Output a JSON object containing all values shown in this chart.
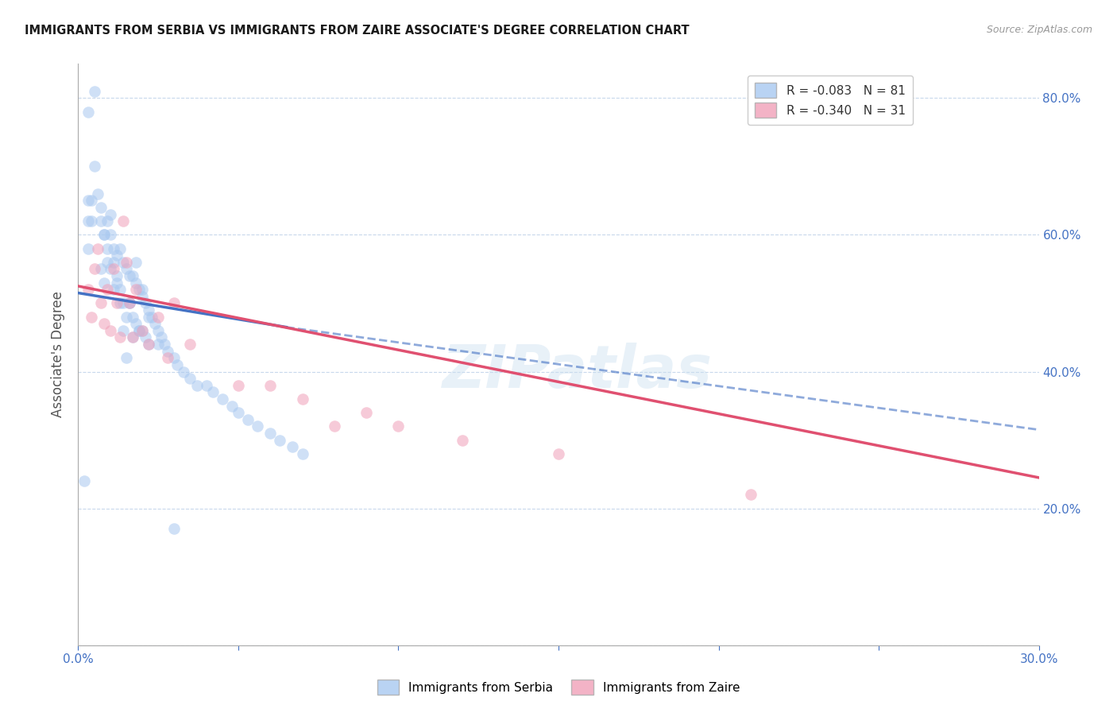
{
  "title": "IMMIGRANTS FROM SERBIA VS IMMIGRANTS FROM ZAIRE ASSOCIATE'S DEGREE CORRELATION CHART",
  "source": "Source: ZipAtlas.com",
  "ylabel": "Associate's Degree",
  "xlim": [
    0.0,
    0.3
  ],
  "ylim": [
    0.0,
    0.85
  ],
  "serbia_R": -0.083,
  "serbia_N": 81,
  "zaire_R": -0.34,
  "zaire_N": 31,
  "serbia_color": "#A8C8F0",
  "zaire_color": "#F0A0B8",
  "trend_serbia_color": "#4472C4",
  "trend_zaire_color": "#E05070",
  "grid_color": "#C8D8EC",
  "watermark": "ZIPatlas",
  "serbia_x": [
    0.002,
    0.003,
    0.003,
    0.004,
    0.005,
    0.006,
    0.007,
    0.007,
    0.008,
    0.008,
    0.009,
    0.009,
    0.01,
    0.01,
    0.011,
    0.011,
    0.012,
    0.012,
    0.013,
    0.013,
    0.014,
    0.014,
    0.015,
    0.015,
    0.016,
    0.016,
    0.017,
    0.017,
    0.018,
    0.018,
    0.019,
    0.019,
    0.02,
    0.02,
    0.021,
    0.021,
    0.022,
    0.022,
    0.023,
    0.024,
    0.025,
    0.026,
    0.027,
    0.028,
    0.03,
    0.031,
    0.033,
    0.035,
    0.037,
    0.04,
    0.042,
    0.045,
    0.048,
    0.05,
    0.053,
    0.056,
    0.06,
    0.063,
    0.067,
    0.07,
    0.003,
    0.003,
    0.004,
    0.005,
    0.007,
    0.008,
    0.009,
    0.01,
    0.011,
    0.012,
    0.013,
    0.014,
    0.015,
    0.016,
    0.017,
    0.018,
    0.019,
    0.02,
    0.022,
    0.025,
    0.03
  ],
  "serbia_y": [
    0.24,
    0.78,
    0.65,
    0.62,
    0.81,
    0.66,
    0.62,
    0.55,
    0.6,
    0.53,
    0.62,
    0.58,
    0.6,
    0.55,
    0.56,
    0.52,
    0.57,
    0.53,
    0.58,
    0.52,
    0.56,
    0.5,
    0.55,
    0.48,
    0.54,
    0.5,
    0.54,
    0.48,
    0.53,
    0.47,
    0.52,
    0.46,
    0.52,
    0.46,
    0.5,
    0.45,
    0.49,
    0.44,
    0.48,
    0.47,
    0.46,
    0.45,
    0.44,
    0.43,
    0.42,
    0.41,
    0.4,
    0.39,
    0.38,
    0.38,
    0.37,
    0.36,
    0.35,
    0.34,
    0.33,
    0.32,
    0.31,
    0.3,
    0.29,
    0.28,
    0.62,
    0.58,
    0.65,
    0.7,
    0.64,
    0.6,
    0.56,
    0.63,
    0.58,
    0.54,
    0.5,
    0.46,
    0.42,
    0.5,
    0.45,
    0.56,
    0.46,
    0.51,
    0.48,
    0.44,
    0.17
  ],
  "zaire_x": [
    0.003,
    0.004,
    0.005,
    0.006,
    0.007,
    0.008,
    0.009,
    0.01,
    0.011,
    0.012,
    0.013,
    0.014,
    0.015,
    0.016,
    0.017,
    0.018,
    0.02,
    0.022,
    0.025,
    0.028,
    0.03,
    0.035,
    0.05,
    0.06,
    0.07,
    0.08,
    0.09,
    0.1,
    0.12,
    0.15,
    0.21
  ],
  "zaire_y": [
    0.52,
    0.48,
    0.55,
    0.58,
    0.5,
    0.47,
    0.52,
    0.46,
    0.55,
    0.5,
    0.45,
    0.62,
    0.56,
    0.5,
    0.45,
    0.52,
    0.46,
    0.44,
    0.48,
    0.42,
    0.5,
    0.44,
    0.38,
    0.38,
    0.36,
    0.32,
    0.34,
    0.32,
    0.3,
    0.28,
    0.22
  ],
  "serbia_trend_x0": 0.0,
  "serbia_trend_y0": 0.515,
  "serbia_trend_x1": 0.065,
  "serbia_trend_y1": 0.465,
  "serbia_trend_dash_x0": 0.065,
  "serbia_trend_dash_y0": 0.465,
  "serbia_trend_dash_x1": 0.3,
  "serbia_trend_dash_y1": 0.315,
  "zaire_trend_x0": 0.0,
  "zaire_trend_y0": 0.525,
  "zaire_trend_x1": 0.3,
  "zaire_trend_y1": 0.245
}
